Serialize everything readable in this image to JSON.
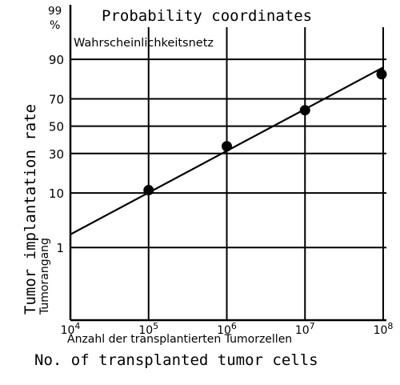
{
  "chart_data": {
    "type": "scatter",
    "title": "Probability coordinates",
    "subtitle": "Wahrscheinlichkeitsnetz",
    "xlabel": "No. of transplanted tumor cells",
    "xlabel_de": "Anzahl der transplantierten Tumorzellen",
    "ylabel": "Tumor implantation rate",
    "ylabel_de": "Tumorangang",
    "y_unit": "%",
    "x_scale": "log",
    "y_scale": "probability",
    "xlim": [
      10000,
      100000000
    ],
    "ylim": [
      0.01,
      99
    ],
    "x_ticks": [
      10000,
      100000,
      1000000,
      10000000,
      100000000
    ],
    "x_tick_labels": [
      {
        "base": "10",
        "exp": "4"
      },
      {
        "base": "10",
        "exp": "5"
      },
      {
        "base": "10",
        "exp": "6"
      },
      {
        "base": "10",
        "exp": "7"
      },
      {
        "base": "10",
        "exp": "8"
      }
    ],
    "y_ticks": [
      1,
      10,
      30,
      50,
      70,
      90
    ],
    "y_tick_labels": [
      "1",
      "10",
      "30",
      "50",
      "70",
      "90"
    ],
    "y_top_label": "99",
    "grid": true,
    "series": [
      {
        "points": [
          {
            "x": 100000,
            "y": 11
          },
          {
            "x": 1000000,
            "y": 35
          },
          {
            "x": 10000000,
            "y": 62
          },
          {
            "x": 100000000,
            "y": 84
          }
        ]
      }
    ],
    "fit_line": {
      "x": [
        10000,
        100000000
      ],
      "y": [
        1.9,
        87
      ]
    }
  }
}
